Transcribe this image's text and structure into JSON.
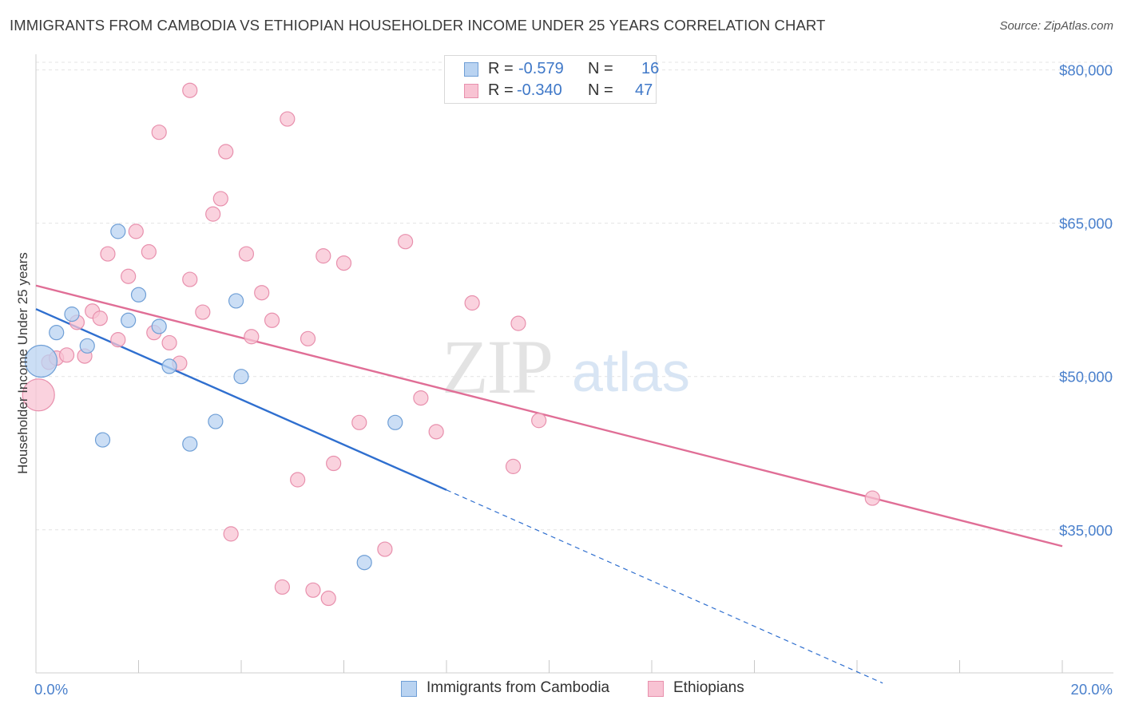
{
  "header": {
    "title": "IMMIGRANTS FROM CAMBODIA VS ETHIOPIAN HOUSEHOLDER INCOME UNDER 25 YEARS CORRELATION CHART",
    "source": "Source: ZipAtlas.com"
  },
  "watermark": {
    "zip": "ZIP",
    "atlas": "atlas"
  },
  "stats": {
    "r_label": "R = ",
    "n_label": "N = ",
    "rows": [
      {
        "r": "-0.579",
        "n": "16"
      },
      {
        "r": "-0.340",
        "n": "47"
      }
    ]
  },
  "chart_data": {
    "type": "scatter",
    "title": "IMMIGRANTS FROM CAMBODIA VS ETHIOPIAN HOUSEHOLDER INCOME UNDER 25 YEARS CORRELATION CHART",
    "xlabel": "",
    "ylabel": "Householder Income Under 25 years",
    "xlim": [
      0,
      20
    ],
    "ylim": [
      21000,
      82000
    ],
    "x_tick_labels": [
      "0.0%",
      "20.0%"
    ],
    "y_ticks": [
      35000,
      50000,
      65000,
      80000
    ],
    "y_tick_labels": [
      "$35,000",
      "$50,000",
      "$65,000",
      "$80,000"
    ],
    "grid": true,
    "legend_position": "bottom-center",
    "colors": {
      "cambodia_fill": "#b9d3f1",
      "cambodia_stroke": "#6f9fd6",
      "cambodia_line": "#2f6fcf",
      "ethiopia_fill": "#f8c3d3",
      "ethiopia_stroke": "#e890ad",
      "ethiopia_line": "#e06e96",
      "tick_label": "#4a80cc"
    },
    "series": [
      {
        "name": "Immigrants from Cambodia",
        "r": -0.579,
        "n": 16,
        "trend": {
          "x0": 0,
          "y0": 56600,
          "x1": 8.0,
          "y1": 38900,
          "x_dash_end": 16.5,
          "y_dash_end": 20000
        },
        "points": [
          {
            "x": 0.1,
            "y": 51500,
            "big": true
          },
          {
            "x": 0.4,
            "y": 54300
          },
          {
            "x": 0.7,
            "y": 56100
          },
          {
            "x": 1.0,
            "y": 53000
          },
          {
            "x": 1.3,
            "y": 43800
          },
          {
            "x": 1.6,
            "y": 64200
          },
          {
            "x": 1.8,
            "y": 55500
          },
          {
            "x": 2.0,
            "y": 58000
          },
          {
            "x": 2.4,
            "y": 54900
          },
          {
            "x": 2.6,
            "y": 51000
          },
          {
            "x": 3.0,
            "y": 43400
          },
          {
            "x": 3.5,
            "y": 45600
          },
          {
            "x": 3.9,
            "y": 57400
          },
          {
            "x": 4.0,
            "y": 50000
          },
          {
            "x": 7.0,
            "y": 45500
          },
          {
            "x": 6.4,
            "y": 31800
          }
        ]
      },
      {
        "name": "Ethiopians",
        "r": -0.34,
        "n": 47,
        "trend": {
          "x0": 0,
          "y0": 58900,
          "x1": 20.0,
          "y1": 33400
        },
        "points": [
          {
            "x": 0.05,
            "y": 48200,
            "big": true
          },
          {
            "x": 0.25,
            "y": 51400
          },
          {
            "x": 0.4,
            "y": 51800
          },
          {
            "x": 0.6,
            "y": 52100
          },
          {
            "x": 0.8,
            "y": 55300
          },
          {
            "x": 0.95,
            "y": 52000
          },
          {
            "x": 1.1,
            "y": 56400
          },
          {
            "x": 1.25,
            "y": 55700
          },
          {
            "x": 1.4,
            "y": 62000
          },
          {
            "x": 1.6,
            "y": 53600
          },
          {
            "x": 1.8,
            "y": 59800
          },
          {
            "x": 1.95,
            "y": 64200
          },
          {
            "x": 2.2,
            "y": 62200
          },
          {
            "x": 2.3,
            "y": 54300
          },
          {
            "x": 2.4,
            "y": 73900
          },
          {
            "x": 2.6,
            "y": 53300
          },
          {
            "x": 2.8,
            "y": 51300
          },
          {
            "x": 3.0,
            "y": 78000
          },
          {
            "x": 3.0,
            "y": 59500
          },
          {
            "x": 3.25,
            "y": 56300
          },
          {
            "x": 3.45,
            "y": 65900
          },
          {
            "x": 3.6,
            "y": 67400
          },
          {
            "x": 3.7,
            "y": 72000
          },
          {
            "x": 3.8,
            "y": 34600
          },
          {
            "x": 4.1,
            "y": 62000
          },
          {
            "x": 4.2,
            "y": 53900
          },
          {
            "x": 4.4,
            "y": 58200
          },
          {
            "x": 4.6,
            "y": 55500
          },
          {
            "x": 4.8,
            "y": 29400
          },
          {
            "x": 4.9,
            "y": 75200
          },
          {
            "x": 5.1,
            "y": 39900
          },
          {
            "x": 5.3,
            "y": 53700
          },
          {
            "x": 5.4,
            "y": 29100
          },
          {
            "x": 5.6,
            "y": 61800
          },
          {
            "x": 5.7,
            "y": 28300
          },
          {
            "x": 5.8,
            "y": 41500
          },
          {
            "x": 6.0,
            "y": 61100
          },
          {
            "x": 6.3,
            "y": 45500
          },
          {
            "x": 6.8,
            "y": 33100
          },
          {
            "x": 7.2,
            "y": 63200
          },
          {
            "x": 7.5,
            "y": 47900
          },
          {
            "x": 7.8,
            "y": 44600
          },
          {
            "x": 8.5,
            "y": 57200
          },
          {
            "x": 9.3,
            "y": 41200
          },
          {
            "x": 9.4,
            "y": 55200
          },
          {
            "x": 9.8,
            "y": 45700
          },
          {
            "x": 16.3,
            "y": 38100
          }
        ]
      }
    ]
  }
}
